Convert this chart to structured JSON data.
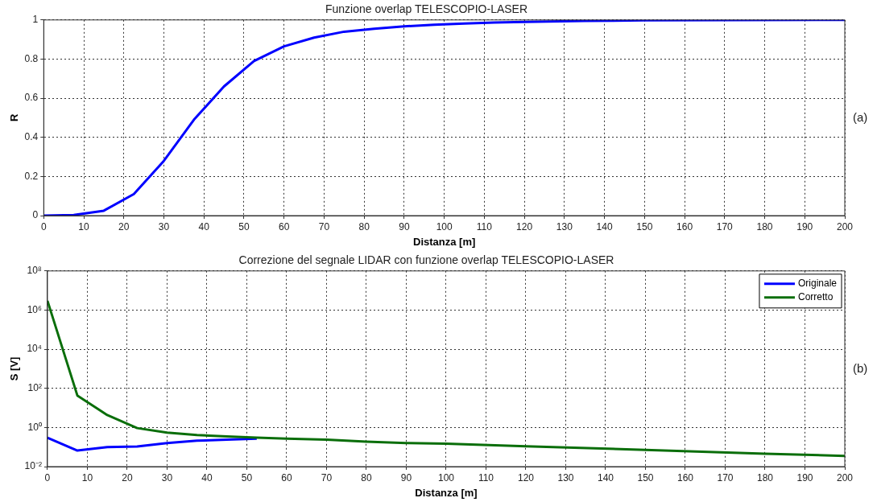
{
  "chart_data": [
    {
      "type": "line",
      "title": "Funzione overlap TELESCOPIO-LASER",
      "xlabel": "Distanza [m]",
      "ylabel": "R",
      "x": [
        0,
        7.5,
        15,
        22.5,
        30,
        37.5,
        45,
        52.5,
        60,
        67.5,
        75,
        82.5,
        90,
        97.5,
        105,
        112.5,
        120,
        135,
        150,
        200
      ],
      "series": [
        {
          "color": "#0000ff",
          "values": [
            0,
            0.003,
            0.025,
            0.11,
            0.28,
            0.49,
            0.66,
            0.79,
            0.865,
            0.91,
            0.94,
            0.955,
            0.967,
            0.976,
            0.982,
            0.987,
            0.99,
            0.995,
            0.998,
            1
          ]
        }
      ],
      "xlim": [
        0,
        200
      ],
      "xticks": [
        0,
        10,
        20,
        30,
        40,
        50,
        60,
        70,
        80,
        90,
        100,
        110,
        120,
        130,
        140,
        150,
        160,
        170,
        180,
        190,
        200
      ],
      "ylim": [
        0,
        1
      ],
      "yticks": [
        0,
        0.2,
        0.4,
        0.6,
        0.8,
        1
      ],
      "grid": true,
      "annotations": [
        "(a)"
      ]
    },
    {
      "type": "line",
      "title": "Correzione del segnale LIDAR con funzione overlap TELESCOPIO-LASER",
      "xlabel": "Distanza [m]",
      "ylabel": "S [V]",
      "x": [
        0,
        7.5,
        15,
        22.5,
        30,
        37.5,
        45,
        52.5,
        60,
        70,
        80,
        90,
        100,
        120,
        150,
        180,
        200
      ],
      "series": [
        {
          "name": "Originale",
          "color": "#0000ff",
          "values": [
            0.3,
            0.066,
            0.1,
            0.107,
            0.16,
            0.21,
            0.24,
            0.27,
            null,
            null,
            null,
            null,
            null,
            null,
            null,
            null,
            null
          ]
        },
        {
          "name": "Corretto",
          "color": "#0a6e0a",
          "values": [
            3000000,
            43,
            4.3,
            0.93,
            0.55,
            0.41,
            0.35,
            0.3,
            0.27,
            0.24,
            0.19,
            0.16,
            0.15,
            0.11,
            0.072,
            0.046,
            0.035
          ]
        }
      ],
      "xlim": [
        0,
        200
      ],
      "xticks": [
        0,
        10,
        20,
        30,
        40,
        50,
        60,
        70,
        80,
        90,
        100,
        110,
        120,
        130,
        140,
        150,
        160,
        170,
        180,
        190,
        200
      ],
      "ylim": [
        0.01,
        100000000
      ],
      "yticks": [
        {
          "value": 0.01,
          "label": "10⁻²"
        },
        {
          "value": 1,
          "label": "10⁰"
        },
        {
          "value": 100,
          "label": "10²"
        },
        {
          "value": 10000,
          "label": "10⁴"
        },
        {
          "value": 1000000,
          "label": "10⁶"
        },
        {
          "value": 100000000,
          "label": "10⁸"
        }
      ],
      "log": "y",
      "grid": true,
      "legend": "top right",
      "annotations": [
        "(b)"
      ]
    }
  ]
}
